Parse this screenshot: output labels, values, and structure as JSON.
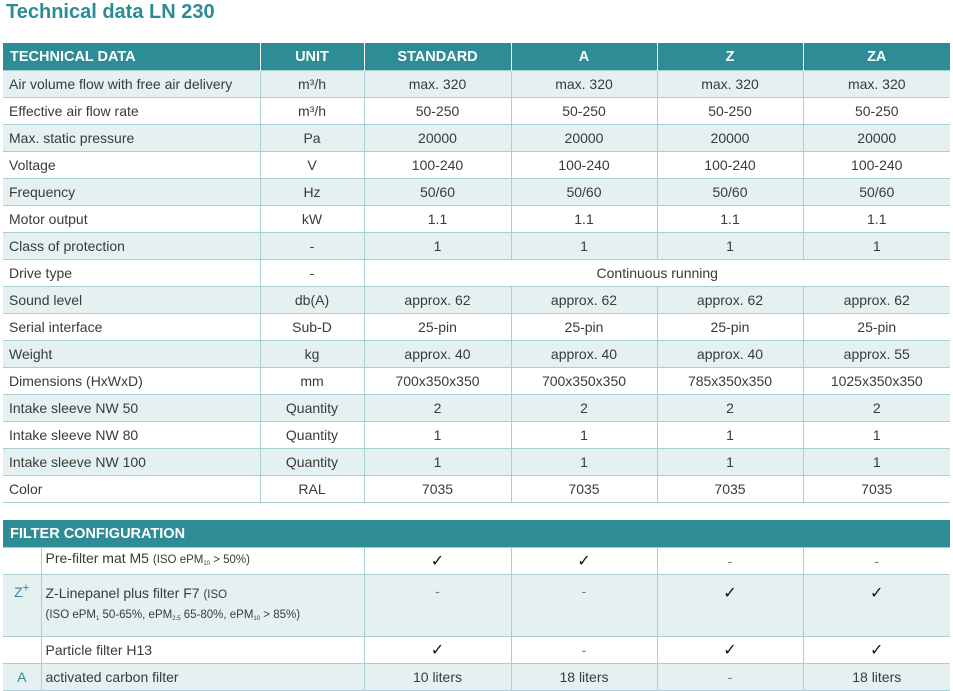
{
  "title": "Technical data LN 230",
  "tech": {
    "headers": [
      "TECHNICAL DATA",
      "UNIT",
      "STANDARD",
      "A",
      "Z",
      "ZA"
    ],
    "rows": [
      {
        "label": "Air volume flow with free air delivery",
        "unit": "m³/h",
        "v": [
          "max. 320",
          "max. 320",
          "max. 320",
          "max. 320"
        ]
      },
      {
        "label": "Effective air flow rate",
        "unit": "m³/h",
        "v": [
          "50-250",
          "50-250",
          "50-250",
          "50-250"
        ]
      },
      {
        "label": "Max. static pressure",
        "unit": "Pa",
        "v": [
          "20000",
          "20000",
          "20000",
          "20000"
        ]
      },
      {
        "label": "Voltage",
        "unit": "V",
        "v": [
          "100-240",
          "100-240",
          "100-240",
          "100-240"
        ]
      },
      {
        "label": "Frequency",
        "unit": "Hz",
        "v": [
          "50/60",
          "50/60",
          "50/60",
          "50/60"
        ]
      },
      {
        "label": "Motor output",
        "unit": "kW",
        "v": [
          "1.1",
          "1.1",
          "1.1",
          "1.1"
        ]
      },
      {
        "label": "Class of protection",
        "unit": "-",
        "v": [
          "1",
          "1",
          "1",
          "1"
        ]
      },
      {
        "label": "Drive type",
        "unit": "-",
        "span": "Continuous running"
      },
      {
        "label": "Sound level",
        "unit": "db(A)",
        "v": [
          "approx. 62",
          "approx. 62",
          "approx. 62",
          "approx. 62"
        ]
      },
      {
        "label": "Serial interface",
        "unit": "Sub-D",
        "v": [
          "25-pin",
          "25-pin",
          "25-pin",
          "25-pin"
        ]
      },
      {
        "label": "Weight",
        "unit": "kg",
        "v": [
          "approx. 40",
          "approx. 40",
          "approx. 40",
          "approx. 55"
        ]
      },
      {
        "label": "Dimensions (HxWxD)",
        "unit": "mm",
        "v": [
          "700x350x350",
          "700x350x350",
          "785x350x350",
          "1025x350x350"
        ]
      },
      {
        "label": "Intake sleeve NW 50",
        "unit": "Quantity",
        "v": [
          "2",
          "2",
          "2",
          "2"
        ]
      },
      {
        "label": "Intake sleeve NW 80",
        "unit": "Quantity",
        "v": [
          "1",
          "1",
          "1",
          "1"
        ]
      },
      {
        "label": "Intake sleeve NW 100",
        "unit": "Quantity",
        "v": [
          "1",
          "1",
          "1",
          "1"
        ]
      },
      {
        "label": "Color",
        "unit": "RAL",
        "v": [
          "7035",
          "7035",
          "7035",
          "7035"
        ]
      }
    ]
  },
  "filter": {
    "header": "FILTER CONFIGURATION",
    "rows": [
      {
        "mark": "",
        "name": "Pre-filter mat M5",
        "note_open": "(ISO ePM",
        "note_sub": "10",
        "note_close": " > 50%)",
        "v": [
          "✓",
          "✓",
          "-",
          "-"
        ]
      },
      {
        "mark": "Z+",
        "name": "Z-Linepanel plus filter F7",
        "note_open": "(ISO",
        "line2_a": "(ISO ePM",
        "line2_a_sub": "1",
        "line2_b": " 50-65%, ePM",
        "line2_b_sub": "2.5",
        "line2_c": " 65-80%, ePM",
        "line2_c_sub": "10",
        "line2_d": " > 85%)",
        "v": [
          "-",
          "-",
          "✓",
          "✓"
        ]
      },
      {
        "mark": "",
        "name": "Particle filter H13",
        "v": [
          "✓",
          "-",
          "✓",
          "✓"
        ]
      },
      {
        "mark": "A",
        "name": "activated carbon filter",
        "v": [
          "10 liters",
          "18 liters",
          "-",
          "18 liters"
        ]
      }
    ]
  }
}
